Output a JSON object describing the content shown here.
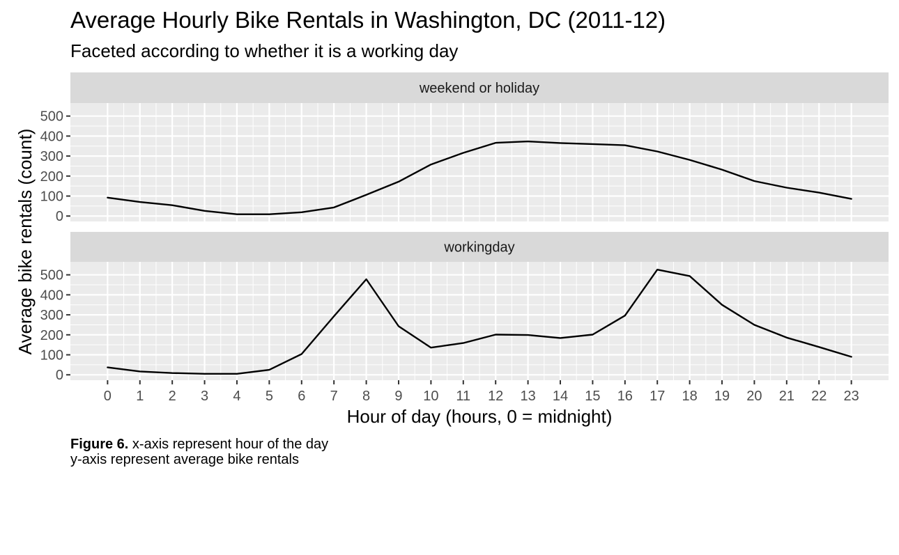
{
  "chart_data": {
    "type": "line",
    "title": "Average Hourly Bike Rentals in Washington, DC (2011-12)",
    "subtitle": "Faceted according to whether it is a working day",
    "xlabel": "Hour of day (hours, 0 = midnight)",
    "ylabel": "Average bike rentals (count)",
    "x": [
      0,
      1,
      2,
      3,
      4,
      5,
      6,
      7,
      8,
      9,
      10,
      11,
      12,
      13,
      14,
      15,
      16,
      17,
      18,
      19,
      20,
      21,
      22,
      23
    ],
    "xlim": [
      -1.15,
      24.15
    ],
    "ylim": [
      -27,
      565
    ],
    "yticks": [
      0,
      100,
      200,
      300,
      400,
      500
    ],
    "grid": true,
    "line_color": "#000000",
    "panel_background": "#EBEBEB",
    "strip_background": "#D9D9D9",
    "facets": [
      {
        "label": "weekend or holiday",
        "values": [
          92,
          70,
          54,
          26,
          9,
          9,
          19,
          43,
          106,
          172,
          258,
          316,
          366,
          373,
          365,
          360,
          354,
          323,
          281,
          232,
          175,
          142,
          117,
          86
        ]
      },
      {
        "label": "workingday",
        "values": [
          37,
          17,
          9,
          5,
          5,
          25,
          104,
          293,
          478,
          243,
          136,
          159,
          201,
          199,
          184,
          201,
          296,
          526,
          494,
          350,
          250,
          186,
          139,
          90
        ]
      }
    ]
  },
  "caption": {
    "bold": "Figure 6.",
    "line1": " x-axis represent hour of the day",
    "line2": "y-axis represent average bike rentals"
  }
}
